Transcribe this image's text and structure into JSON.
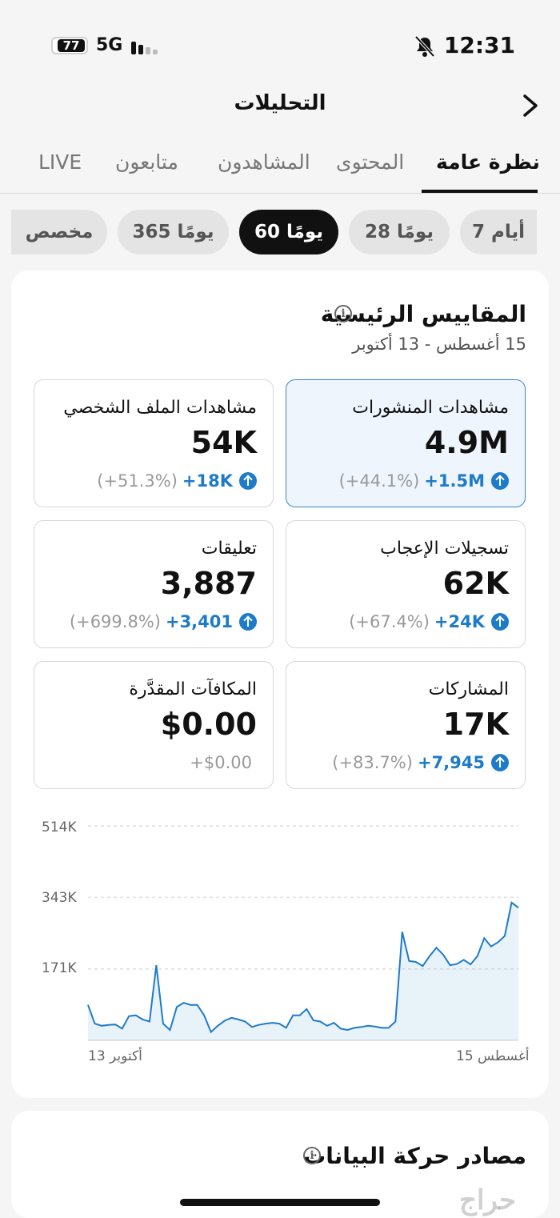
{
  "status_bar": {
    "battery": "77",
    "network": "5G",
    "time": "12:31"
  },
  "header": {
    "title": "التحليلات"
  },
  "tabs": [
    {
      "label": "نظرة عامة",
      "active": true
    },
    {
      "label": "المحتوى",
      "active": false
    },
    {
      "label": "المشاهدون",
      "active": false
    },
    {
      "label": "متابعون",
      "active": false
    },
    {
      "label": "LIVE",
      "active": false
    }
  ],
  "ranges": [
    {
      "label": "7 أيام",
      "active": false
    },
    {
      "label": "28 يومًا",
      "active": false
    },
    {
      "label": "60 يومًا",
      "active": true
    },
    {
      "label": "365 يومًا",
      "active": false
    },
    {
      "label": "مخصص",
      "active": false
    }
  ],
  "key_metrics": {
    "title": "المقاييس الرئيسية",
    "info_icon": "i",
    "date_range": "15 أغسطس - 13 أكتوبر",
    "metrics": [
      {
        "label": "مشاهدات المنشورات",
        "value": "4.9M",
        "delta": "+1.5M",
        "pct": "(+44.1%)",
        "selected": true
      },
      {
        "label": "مشاهدات الملف الشخصي",
        "value": "54K",
        "delta": "+18K",
        "pct": "(+51.3%)",
        "selected": false
      },
      {
        "label": "تسجيلات الإعجاب",
        "value": "62K",
        "delta": "+24K",
        "pct": "(+67.4%)",
        "selected": false
      },
      {
        "label": "تعليقات",
        "value": "3,887",
        "delta": "+3,401",
        "pct": "(+699.8%)",
        "selected": false
      },
      {
        "label": "المشاركات",
        "value": "17K",
        "delta": "+7,945",
        "pct": "(+83.7%)",
        "selected": false
      },
      {
        "label": "المكافآت المقدَّرة",
        "value": "$0.00",
        "delta": "",
        "pct": "+$0.00",
        "selected": false
      }
    ]
  },
  "chart_data": {
    "type": "area",
    "y_ticks": [
      "514K",
      "343K",
      "171K"
    ],
    "x_labels": {
      "start": "أكتوبر 13",
      "end": "أغسطس 15"
    },
    "ylim": [
      0,
      514000
    ],
    "color": "#1e7bc8",
    "values": [
      318000,
      330000,
      250000,
      235000,
      225000,
      245000,
      202000,
      182000,
      193000,
      183000,
      180000,
      205000,
      222000,
      202000,
      178000,
      188000,
      190000,
      260000,
      45000,
      30000,
      30000,
      33000,
      35000,
      32000,
      30000,
      25000,
      28000,
      42000,
      35000,
      45000,
      48000,
      75000,
      60000,
      60000,
      30000,
      40000,
      42000,
      40000,
      37000,
      32000,
      45000,
      50000,
      54000,
      47000,
      35000,
      20000,
      60000,
      85000,
      85000,
      90000,
      80000,
      25000,
      40000,
      180000,
      45000,
      50000,
      60000,
      58000,
      28000,
      38000,
      37000,
      35000,
      40000,
      85000
    ]
  },
  "traffic_sources": {
    "title": "مصادر حركة البيانات",
    "info_icon": "i"
  },
  "watermark": "حراج"
}
